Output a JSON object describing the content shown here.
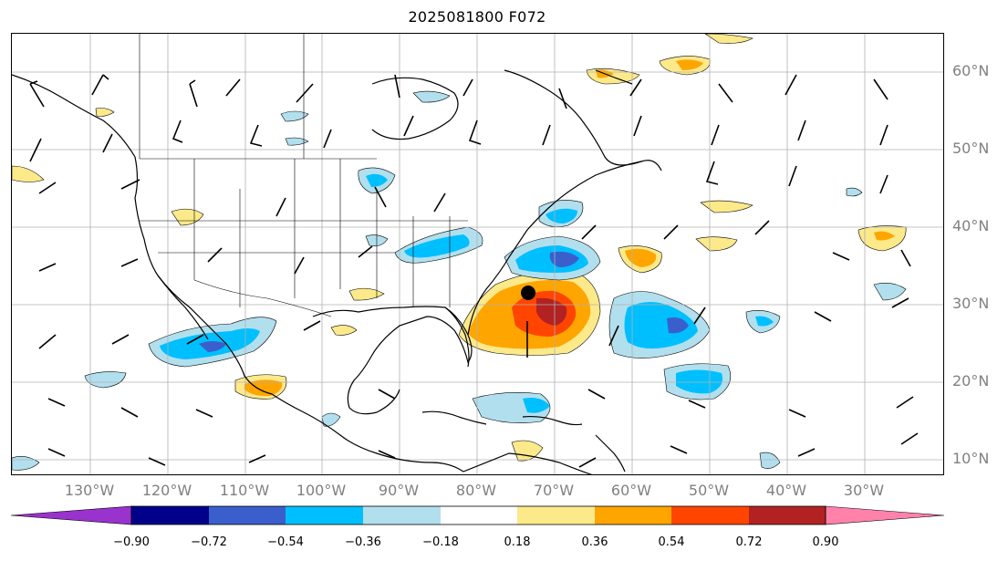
{
  "title": "2025081800 F072",
  "lat_labels": [
    "60°N",
    "50°N",
    "40°N",
    "30°N",
    "20°N",
    "10°N"
  ],
  "lon_labels": [
    "130°W",
    "120°W",
    "110°W",
    "100°W",
    "90°W",
    "80°W",
    "70°W",
    "60°W",
    "50°W",
    "40°W",
    "30°W"
  ],
  "colorbar": {
    "ticks": [
      "−0.90",
      "−0.72",
      "−0.54",
      "−0.36",
      "−0.18",
      "0.18",
      "0.36",
      "0.54",
      "0.72",
      "0.90"
    ],
    "colors": [
      "#9a32cd",
      "#00008b",
      "#3a5fcd",
      "#00bfff",
      "#b2dfee",
      "#ffffff",
      "#fce98a",
      "#ffa500",
      "#ff4500",
      "#b22222",
      "#ff82ab"
    ]
  },
  "shading_colors": {
    "neg_light": "#b2dfee",
    "neg_mid": "#00bfff",
    "neg_strong": "#3a5fcd",
    "neg_max": "#9a32cd",
    "pos_light": "#fce98a",
    "pos_mid": "#ffa500",
    "pos_strong": "#ff4500",
    "pos_max": "#b22222"
  },
  "marker": {
    "name": "storm-center",
    "lon": -74,
    "lat": 32
  }
}
